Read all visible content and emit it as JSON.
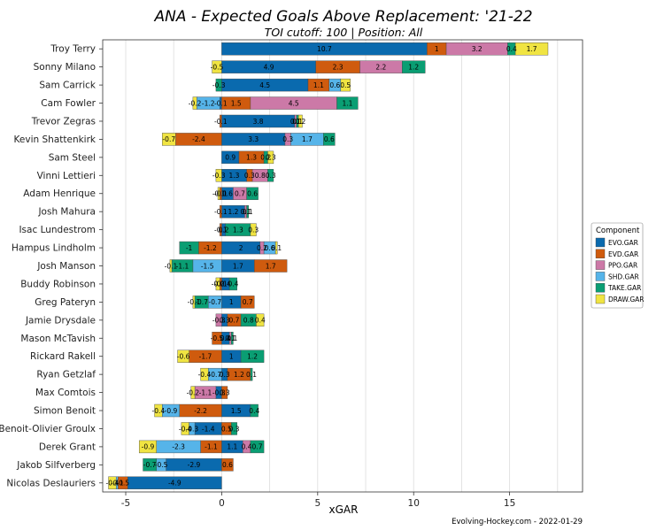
{
  "chart_data": {
    "type": "bar",
    "orientation": "horizontal",
    "stacked": true,
    "title": "ANA - Expected Goals Above Replacement: '21-22",
    "subtitle": "TOI cutoff: 100 | Position: All",
    "xlabel": "xGAR",
    "ylabel": "",
    "xlim": [
      -6.2,
      18.8
    ],
    "xticks": [
      -5,
      0,
      5,
      10,
      15
    ],
    "grid": true,
    "legend": {
      "title": "Component",
      "position": "right",
      "entries": [
        {
          "key": "EVO",
          "label": "EVO.GAR",
          "color": "#0a6aae"
        },
        {
          "key": "EVD",
          "label": "EVD.GAR",
          "color": "#cf5b0e"
        },
        {
          "key": "PPO",
          "label": "PPO.GAR",
          "color": "#cc79a7"
        },
        {
          "key": "SHD",
          "label": "SHD.GAR",
          "color": "#56b4e9"
        },
        {
          "key": "TAKE",
          "label": "TAKE.GAR",
          "color": "#0a9e73"
        },
        {
          "key": "DRAW",
          "label": "DRAW.GAR",
          "color": "#f0e442"
        }
      ]
    },
    "players": [
      {
        "name": "Troy Terry",
        "values": {
          "EVO": 10.7,
          "EVD": 1,
          "PPO": 3.2,
          "SHD": 0,
          "TAKE": 0.4,
          "DRAW": 1.7
        }
      },
      {
        "name": "Sonny Milano",
        "values": {
          "EVO": 4.9,
          "EVD": 2.3,
          "PPO": 2.2,
          "SHD": 0,
          "TAKE": 1.2,
          "DRAW": -0.5
        }
      },
      {
        "name": "Sam Carrick",
        "values": {
          "EVO": 4.5,
          "EVD": 1.1,
          "PPO": 0,
          "SHD": 0.6,
          "TAKE": -0.3,
          "DRAW": 0.5
        }
      },
      {
        "name": "Cam Fowler",
        "values": {
          "EVO": -0.1,
          "EVD": 1.5,
          "PPO": 4.5,
          "SHD": -1.2,
          "TAKE": 1.1,
          "DRAW": -0.2
        }
      },
      {
        "name": "Trevor Zegras",
        "values": {
          "EVO": 3.8,
          "EVD": -0.1,
          "PPO": 0.1,
          "SHD": 0,
          "TAKE": 0.1,
          "DRAW": 0.2
        }
      },
      {
        "name": "Kevin Shattenkirk",
        "values": {
          "EVO": 3.3,
          "EVD": -2.4,
          "PPO": 0.3,
          "SHD": 1.7,
          "TAKE": 0.6,
          "DRAW": -0.7
        }
      },
      {
        "name": "Sam Steel",
        "values": {
          "EVO": 0.9,
          "EVD": 1.3,
          "PPO": 0,
          "SHD": 0,
          "TAKE": 0.2,
          "DRAW": 0.3
        }
      },
      {
        "name": "Vinni Lettieri",
        "values": {
          "EVO": 1.3,
          "EVD": 0.3,
          "PPO": 0.8,
          "SHD": 0,
          "TAKE": 0.3,
          "DRAW": -0.3
        }
      },
      {
        "name": "Adam Henrique",
        "values": {
          "EVO": 0.6,
          "EVD": -0.1,
          "PPO": 0.7,
          "SHD": 0,
          "TAKE": 0.6,
          "DRAW": -0.1
        }
      },
      {
        "name": "Josh Mahura",
        "values": {
          "EVO": 1.2,
          "EVD": -0.1,
          "PPO": 0.1,
          "SHD": 0,
          "TAKE": 0.1,
          "DRAW": 0
        }
      },
      {
        "name": "Isac Lundestrom",
        "values": {
          "EVO": 0.2,
          "EVD": -0.1,
          "PPO": 0,
          "SHD": 0,
          "TAKE": 1.3,
          "DRAW": 0.3
        }
      },
      {
        "name": "Hampus Lindholm",
        "values": {
          "EVO": 2,
          "EVD": -1.2,
          "PPO": 0.2,
          "SHD": 0.6,
          "TAKE": -1,
          "DRAW": 0.1
        }
      },
      {
        "name": "Josh Manson",
        "values": {
          "EVO": 1.7,
          "EVD": 1.7,
          "PPO": 0,
          "SHD": -1.5,
          "TAKE": -1.1,
          "DRAW": -0.1
        }
      },
      {
        "name": "Buddy Robinson",
        "values": {
          "EVO": 0.4,
          "EVD": -0.1,
          "PPO": 0,
          "SHD": 0,
          "TAKE": 0.4,
          "DRAW": -0.2
        }
      },
      {
        "name": "Greg Pateryn",
        "values": {
          "EVO": 1,
          "EVD": 0.7,
          "PPO": 0,
          "SHD": -0.7,
          "TAKE": -0.7,
          "DRAW": -0.1
        }
      },
      {
        "name": "Jamie Drysdale",
        "values": {
          "EVO": 0.3,
          "EVD": 0.7,
          "PPO": -0.3,
          "SHD": 0,
          "TAKE": 0.8,
          "DRAW": 0.4
        }
      },
      {
        "name": "Mason McTavish",
        "values": {
          "EVO": 0.4,
          "EVD": -0.5,
          "PPO": 0.1,
          "SHD": 0,
          "TAKE": 0.1,
          "DRAW": 0
        }
      },
      {
        "name": "Rickard Rakell",
        "values": {
          "EVO": 1,
          "EVD": -1.7,
          "PPO": 0,
          "SHD": 0,
          "TAKE": 1.2,
          "DRAW": -0.6
        }
      },
      {
        "name": "Ryan Getzlaf",
        "values": {
          "EVO": 0.3,
          "EVD": 1.2,
          "PPO": 0,
          "SHD": -0.7,
          "TAKE": 0.1,
          "DRAW": -0.4
        }
      },
      {
        "name": "Max Comtois",
        "values": {
          "EVO": -0.3,
          "EVD": 0.3,
          "PPO": -1.1,
          "SHD": 0,
          "TAKE": 0,
          "DRAW": -0.2
        }
      },
      {
        "name": "Simon Benoit",
        "values": {
          "EVO": 1.5,
          "EVD": -2.2,
          "PPO": 0,
          "SHD": -0.9,
          "TAKE": 0.4,
          "DRAW": -0.4
        }
      },
      {
        "name": "Benoit-Olivier Groulx",
        "values": {
          "EVO": -1.4,
          "EVD": 0.5,
          "PPO": 0,
          "SHD": -0.3,
          "TAKE": 0.3,
          "DRAW": -0.4
        }
      },
      {
        "name": "Derek Grant",
        "values": {
          "EVO": 1.1,
          "EVD": -1.1,
          "PPO": 0.4,
          "SHD": -2.3,
          "TAKE": 0.7,
          "DRAW": -0.9
        }
      },
      {
        "name": "Jakob Silfverberg",
        "values": {
          "EVO": -2.9,
          "EVD": 0.6,
          "PPO": 0,
          "SHD": -0.5,
          "TAKE": -0.7,
          "DRAW": 0
        }
      },
      {
        "name": "Nicolas Deslauriers",
        "values": {
          "EVO": -4.9,
          "EVD": -0.5,
          "PPO": 0,
          "SHD": -0.1,
          "TAKE": 0,
          "DRAW": -0.4
        }
      }
    ],
    "source_note": "Evolving-Hockey.com - 2022-01-29"
  }
}
